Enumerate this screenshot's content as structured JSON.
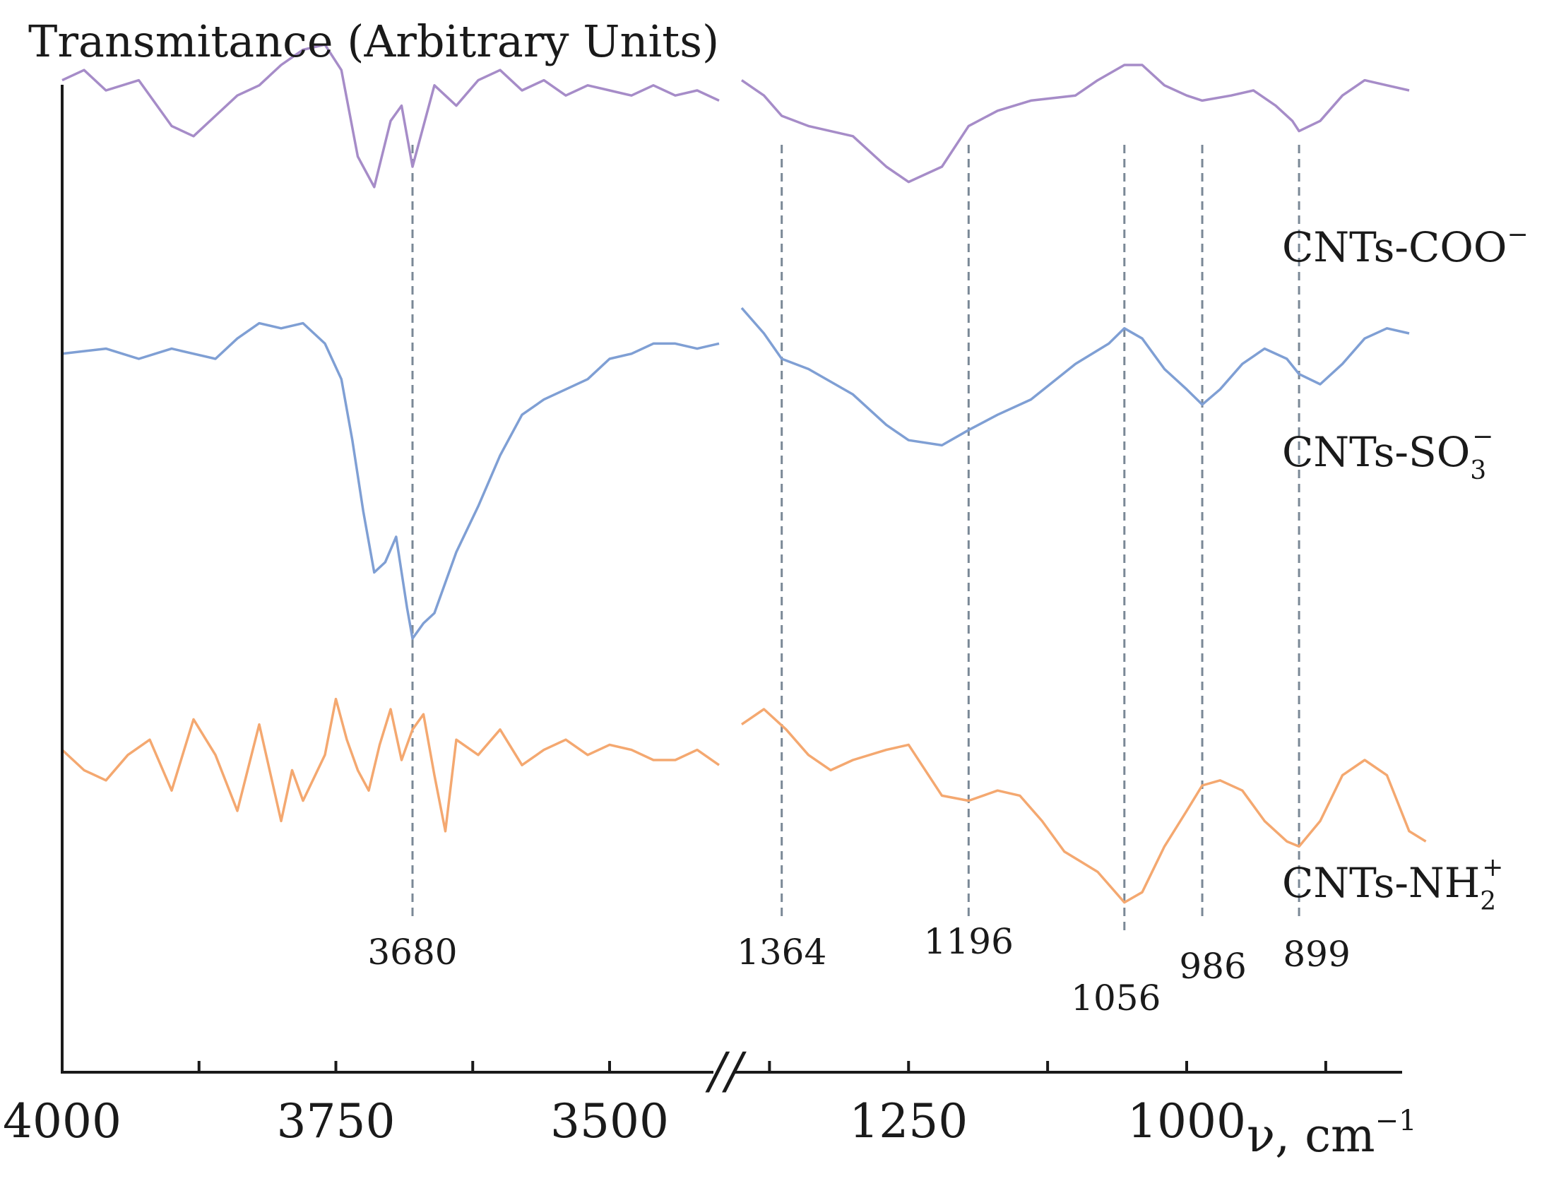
{
  "chart_data": {
    "type": "line",
    "title": "Transmitance (Arbitrary Units)",
    "ylabel": "Transmitance (Arbitrary Units)",
    "xlabel": "ν, cm",
    "xlabel_superscript": "−1",
    "x_axis": "reversed, broken between 3400 and 1400 cm-1",
    "x_segments": [
      {
        "xlim": [
          4000,
          3400
        ],
        "ticks": [
          4000,
          3875,
          3750,
          3625,
          3500
        ],
        "tick_labels": [
          "4000",
          "3750",
          "3500"
        ]
      },
      {
        "xlim": [
          1400,
          800
        ],
        "ticks": [
          1375,
          1250,
          1125,
          1000,
          875
        ],
        "tick_labels": [
          "1250",
          "1000"
        ]
      }
    ],
    "axis_break_marker": "//",
    "grid": false,
    "series": [
      {
        "name": "CNTs-COO",
        "label_base": "CNTs-COO",
        "label_sup": "−",
        "label_sub": "",
        "color": "#a68cc8",
        "points": [
          [
            4000,
            0.87
          ],
          [
            3980,
            0.89
          ],
          [
            3960,
            0.85
          ],
          [
            3930,
            0.87
          ],
          [
            3900,
            0.78
          ],
          [
            3880,
            0.76
          ],
          [
            3860,
            0.8
          ],
          [
            3840,
            0.84
          ],
          [
            3820,
            0.86
          ],
          [
            3800,
            0.9
          ],
          [
            3780,
            0.93
          ],
          [
            3760,
            0.94
          ],
          [
            3745,
            0.89
          ],
          [
            3730,
            0.72
          ],
          [
            3715,
            0.66
          ],
          [
            3700,
            0.79
          ],
          [
            3690,
            0.82
          ],
          [
            3680,
            0.7
          ],
          [
            3660,
            0.86
          ],
          [
            3640,
            0.82
          ],
          [
            3620,
            0.87
          ],
          [
            3600,
            0.89
          ],
          [
            3580,
            0.85
          ],
          [
            3560,
            0.87
          ],
          [
            3540,
            0.84
          ],
          [
            3520,
            0.86
          ],
          [
            3500,
            0.85
          ],
          [
            3480,
            0.84
          ],
          [
            3460,
            0.86
          ],
          [
            3440,
            0.84
          ],
          [
            3420,
            0.85
          ],
          [
            3400,
            0.83
          ],
          [
            1400,
            0.87
          ],
          [
            1380,
            0.84
          ],
          [
            1364,
            0.8
          ],
          [
            1340,
            0.78
          ],
          [
            1300,
            0.76
          ],
          [
            1270,
            0.7
          ],
          [
            1250,
            0.67
          ],
          [
            1220,
            0.7
          ],
          [
            1196,
            0.78
          ],
          [
            1170,
            0.81
          ],
          [
            1140,
            0.83
          ],
          [
            1100,
            0.84
          ],
          [
            1080,
            0.87
          ],
          [
            1056,
            0.9
          ],
          [
            1040,
            0.9
          ],
          [
            1020,
            0.86
          ],
          [
            1000,
            0.84
          ],
          [
            986,
            0.83
          ],
          [
            960,
            0.84
          ],
          [
            940,
            0.85
          ],
          [
            920,
            0.82
          ],
          [
            905,
            0.79
          ],
          [
            899,
            0.77
          ],
          [
            880,
            0.79
          ],
          [
            860,
            0.84
          ],
          [
            840,
            0.87
          ],
          [
            820,
            0.86
          ],
          [
            800,
            0.85
          ]
        ]
      },
      {
        "name": "CNTs-SO3",
        "label_base": "CNTs-SO",
        "label_sup": "−",
        "label_sub": "3",
        "color": "#7f9fd4",
        "points": [
          [
            4000,
            0.61
          ],
          [
            3960,
            0.62
          ],
          [
            3930,
            0.6
          ],
          [
            3900,
            0.62
          ],
          [
            3880,
            0.61
          ],
          [
            3860,
            0.6
          ],
          [
            3840,
            0.64
          ],
          [
            3820,
            0.67
          ],
          [
            3800,
            0.66
          ],
          [
            3780,
            0.67
          ],
          [
            3760,
            0.63
          ],
          [
            3745,
            0.56
          ],
          [
            3735,
            0.44
          ],
          [
            3725,
            0.3
          ],
          [
            3715,
            0.18
          ],
          [
            3705,
            0.2
          ],
          [
            3695,
            0.25
          ],
          [
            3685,
            0.11
          ],
          [
            3680,
            0.05
          ],
          [
            3670,
            0.08
          ],
          [
            3660,
            0.1
          ],
          [
            3640,
            0.22
          ],
          [
            3620,
            0.31
          ],
          [
            3600,
            0.41
          ],
          [
            3580,
            0.49
          ],
          [
            3560,
            0.52
          ],
          [
            3540,
            0.54
          ],
          [
            3520,
            0.56
          ],
          [
            3500,
            0.6
          ],
          [
            3480,
            0.61
          ],
          [
            3460,
            0.63
          ],
          [
            3440,
            0.63
          ],
          [
            3420,
            0.62
          ],
          [
            3400,
            0.63
          ],
          [
            1400,
            0.7
          ],
          [
            1380,
            0.65
          ],
          [
            1364,
            0.6
          ],
          [
            1340,
            0.58
          ],
          [
            1300,
            0.53
          ],
          [
            1270,
            0.47
          ],
          [
            1250,
            0.44
          ],
          [
            1220,
            0.43
          ],
          [
            1196,
            0.46
          ],
          [
            1170,
            0.49
          ],
          [
            1140,
            0.52
          ],
          [
            1100,
            0.59
          ],
          [
            1070,
            0.63
          ],
          [
            1056,
            0.66
          ],
          [
            1040,
            0.64
          ],
          [
            1020,
            0.58
          ],
          [
            1000,
            0.54
          ],
          [
            986,
            0.51
          ],
          [
            970,
            0.54
          ],
          [
            950,
            0.59
          ],
          [
            930,
            0.62
          ],
          [
            910,
            0.6
          ],
          [
            899,
            0.57
          ],
          [
            880,
            0.55
          ],
          [
            860,
            0.59
          ],
          [
            840,
            0.64
          ],
          [
            820,
            0.66
          ],
          [
            800,
            0.65
          ]
        ]
      },
      {
        "name": "CNTs-NH2",
        "label_base": "CNTs-NH",
        "label_sup": "+",
        "label_sub": "2",
        "color": "#f4a870",
        "points": [
          [
            4000,
            0.22
          ],
          [
            3980,
            0.18
          ],
          [
            3960,
            0.16
          ],
          [
            3940,
            0.21
          ],
          [
            3920,
            0.24
          ],
          [
            3900,
            0.14
          ],
          [
            3880,
            0.28
          ],
          [
            3860,
            0.21
          ],
          [
            3840,
            0.1
          ],
          [
            3820,
            0.27
          ],
          [
            3800,
            0.08
          ],
          [
            3790,
            0.18
          ],
          [
            3780,
            0.12
          ],
          [
            3760,
            0.21
          ],
          [
            3750,
            0.32
          ],
          [
            3740,
            0.24
          ],
          [
            3730,
            0.18
          ],
          [
            3720,
            0.14
          ],
          [
            3710,
            0.23
          ],
          [
            3700,
            0.3
          ],
          [
            3690,
            0.2
          ],
          [
            3680,
            0.26
          ],
          [
            3670,
            0.29
          ],
          [
            3660,
            0.17
          ],
          [
            3650,
            0.06
          ],
          [
            3640,
            0.24
          ],
          [
            3620,
            0.21
          ],
          [
            3600,
            0.26
          ],
          [
            3580,
            0.19
          ],
          [
            3560,
            0.22
          ],
          [
            3540,
            0.24
          ],
          [
            3520,
            0.21
          ],
          [
            3500,
            0.23
          ],
          [
            3480,
            0.22
          ],
          [
            3460,
            0.2
          ],
          [
            3440,
            0.2
          ],
          [
            3420,
            0.22
          ],
          [
            3400,
            0.19
          ],
          [
            1400,
            0.27
          ],
          [
            1380,
            0.3
          ],
          [
            1360,
            0.26
          ],
          [
            1340,
            0.21
          ],
          [
            1320,
            0.18
          ],
          [
            1300,
            0.2
          ],
          [
            1270,
            0.22
          ],
          [
            1250,
            0.23
          ],
          [
            1220,
            0.13
          ],
          [
            1196,
            0.12
          ],
          [
            1170,
            0.14
          ],
          [
            1150,
            0.13
          ],
          [
            1130,
            0.08
          ],
          [
            1110,
            0.02
          ],
          [
            1080,
            -0.02
          ],
          [
            1056,
            -0.08
          ],
          [
            1040,
            -0.06
          ],
          [
            1020,
            0.03
          ],
          [
            1000,
            0.1
          ],
          [
            986,
            0.15
          ],
          [
            970,
            0.16
          ],
          [
            950,
            0.14
          ],
          [
            930,
            0.08
          ],
          [
            910,
            0.04
          ],
          [
            899,
            0.03
          ],
          [
            880,
            0.08
          ],
          [
            860,
            0.17
          ],
          [
            840,
            0.2
          ],
          [
            820,
            0.17
          ],
          [
            800,
            0.06
          ],
          [
            785,
            0.04
          ]
        ]
      }
    ],
    "peak_markers": [
      {
        "value": 3680,
        "label": "3680"
      },
      {
        "value": 1364,
        "label": "1364"
      },
      {
        "value": 1196,
        "label": "1196"
      },
      {
        "value": 1056,
        "label": "1056"
      },
      {
        "value": 986,
        "label": "986"
      },
      {
        "value": 899,
        "label": "899"
      }
    ],
    "marker_style": "dashed gray vertical lines",
    "axis_color": "#1a1a1a",
    "marker_color": "#7a8896"
  }
}
